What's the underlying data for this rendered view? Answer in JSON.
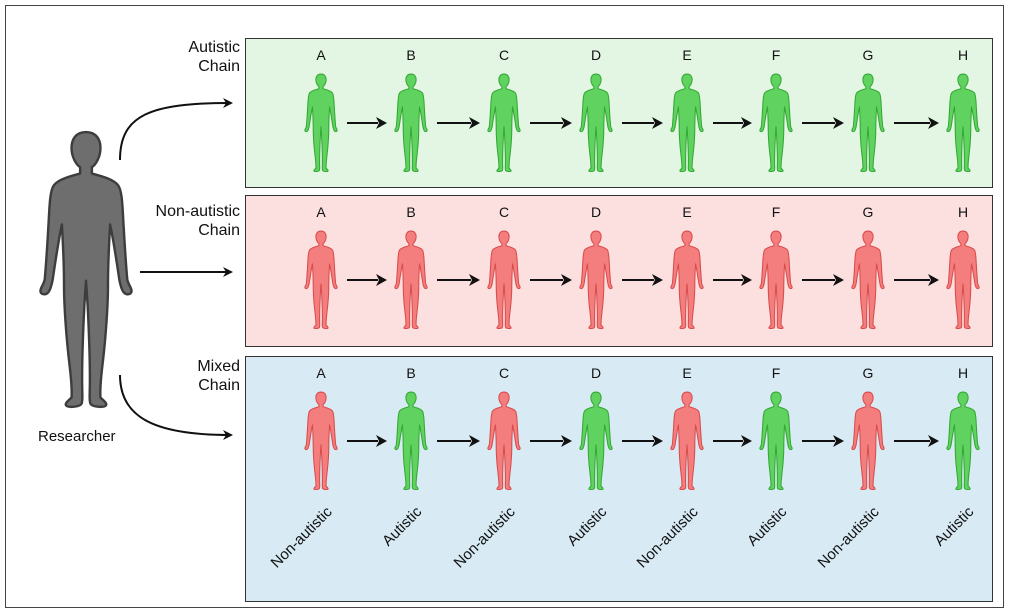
{
  "researcher": {
    "label": "Researcher"
  },
  "chains": [
    {
      "title_line1": "Autistic",
      "title_line2": "Chain",
      "bg": "#e3f5e3",
      "figures": [
        "green",
        "green",
        "green",
        "green",
        "green",
        "green",
        "green",
        "green"
      ]
    },
    {
      "title_line1": "Non-autistic",
      "title_line2": "Chain",
      "bg": "#fce0e0",
      "figures": [
        "red",
        "red",
        "red",
        "red",
        "red",
        "red",
        "red",
        "red"
      ]
    },
    {
      "title_line1": "Mixed",
      "title_line2": "Chain",
      "bg": "#d8eaf4",
      "figures": [
        "red",
        "green",
        "red",
        "green",
        "red",
        "green",
        "red",
        "green"
      ]
    }
  ],
  "letters": [
    "A",
    "B",
    "C",
    "D",
    "E",
    "F",
    "G",
    "H"
  ],
  "mixed_labels": [
    "Non-autistic",
    "Autistic",
    "Non-autistic",
    "Autistic",
    "Non-autistic",
    "Autistic",
    "Non-autistic",
    "Autistic"
  ],
  "colors": {
    "green_fill": "#5fd25f",
    "green_stroke": "#34a834",
    "red_fill": "#f47d7d",
    "red_stroke": "#d84c4c",
    "gray_fill": "#6e6e6e",
    "gray_stroke": "#3d3d3d"
  }
}
